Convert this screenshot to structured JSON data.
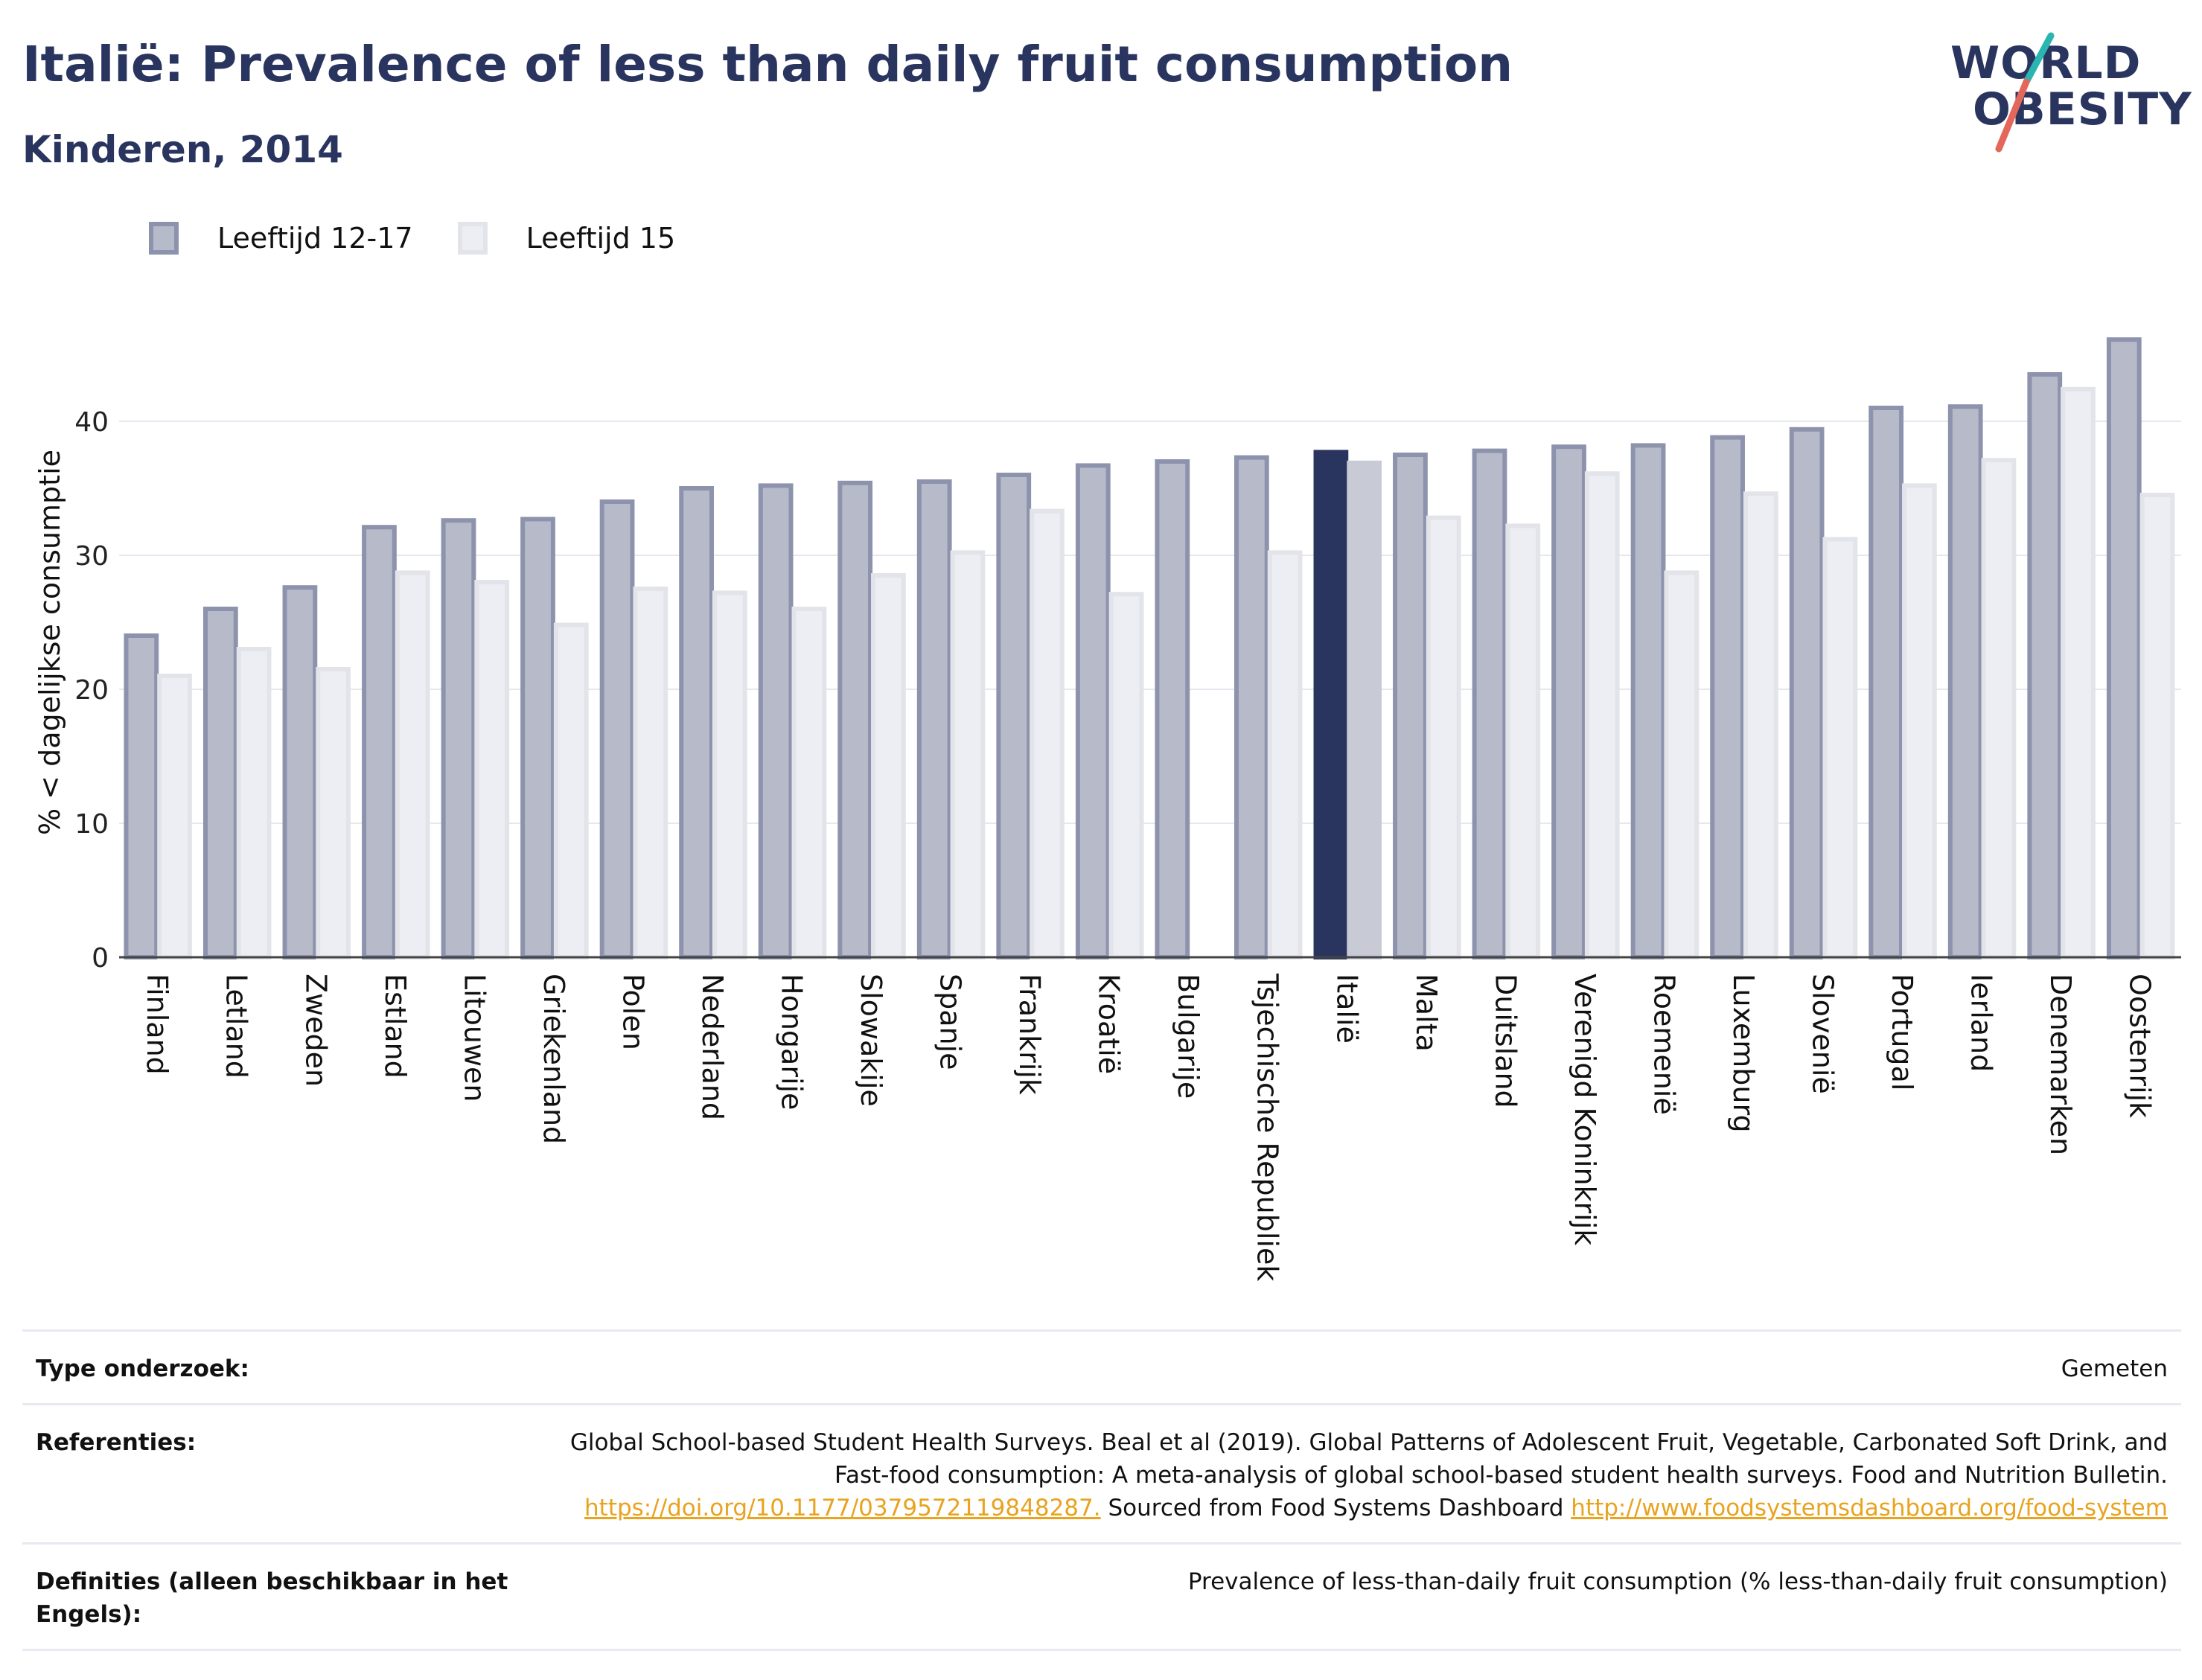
{
  "header": {
    "title": "Italië: Prevalence of less than daily fruit consumption",
    "subtitle": "Kinderen, 2014"
  },
  "logo": {
    "line1": "WORLD",
    "line2": "OBESITY",
    "accent_colors": [
      "#2bb5b1",
      "#e4685a"
    ]
  },
  "legend": [
    {
      "label": "Leeftijd 12-17",
      "color": "#b7bac9"
    },
    {
      "label": "Leeftijd 15",
      "color": "#eceef3"
    }
  ],
  "chart_data": {
    "type": "bar",
    "ylabel": "% < dagelijkse consumptie",
    "ylim": [
      0,
      47
    ],
    "yticks": [
      0,
      10,
      20,
      30,
      40
    ],
    "highlight": "Italië",
    "highlight_colors": [
      "#2a355f",
      "#c8cad6"
    ],
    "grid": true,
    "categories": [
      "Finland",
      "Letland",
      "Zweden",
      "Estland",
      "Litouwen",
      "Griekenland",
      "Polen",
      "Nederland",
      "Hongarije",
      "Slowakije",
      "Spanje",
      "Frankrijk",
      "Kroatië",
      "Bulgarije",
      "Tsjechische Republiek",
      "Italië",
      "Malta",
      "Duitsland",
      "Verenigd Koninkrijk",
      "Roemenië",
      "Luxemburg",
      "Slovenië",
      "Portugal",
      "Ierland",
      "Denemarken",
      "Oostenrijk"
    ],
    "series": [
      {
        "name": "Leeftijd 12-17",
        "values": [
          24.0,
          26.0,
          27.6,
          32.1,
          32.6,
          32.7,
          34.0,
          35.0,
          35.2,
          35.4,
          35.5,
          36.0,
          36.7,
          37.0,
          37.3,
          37.7,
          37.5,
          37.8,
          38.1,
          38.2,
          38.8,
          39.4,
          41.0,
          41.1,
          43.5,
          46.1
        ]
      },
      {
        "name": "Leeftijd 15",
        "values": [
          21.0,
          23.0,
          21.5,
          28.7,
          28.0,
          24.8,
          27.5,
          27.2,
          26.0,
          28.5,
          30.2,
          33.3,
          27.1,
          null,
          30.2,
          36.9,
          32.8,
          32.2,
          36.1,
          28.7,
          34.6,
          31.2,
          35.2,
          37.1,
          42.4,
          34.5
        ]
      }
    ]
  },
  "footer": {
    "survey_type_label": "Type onderzoek:",
    "survey_type_value": "Gemeten",
    "references_label": "Referenties:",
    "references_text": "Global School-based Student Health Surveys. Beal et al (2019). Global Patterns of Adolescent Fruit, Vegetable, Carbonated Soft Drink, and Fast-food consumption: A meta-analysis of global school-based student health surveys. Food and Nutrition Bulletin.",
    "references_link1": "https://doi.org/10.1177/0379572119848287.",
    "references_sourced": " Sourced from Food Systems Dashboard ",
    "references_link2": "http://www.foodsystemsdashboard.org/food-system",
    "definitions_label": "Definities (alleen beschikbaar in het Engels):",
    "definitions_value": "Prevalence of less-than-daily fruit consumption (% less-than-daily fruit consumption)"
  }
}
